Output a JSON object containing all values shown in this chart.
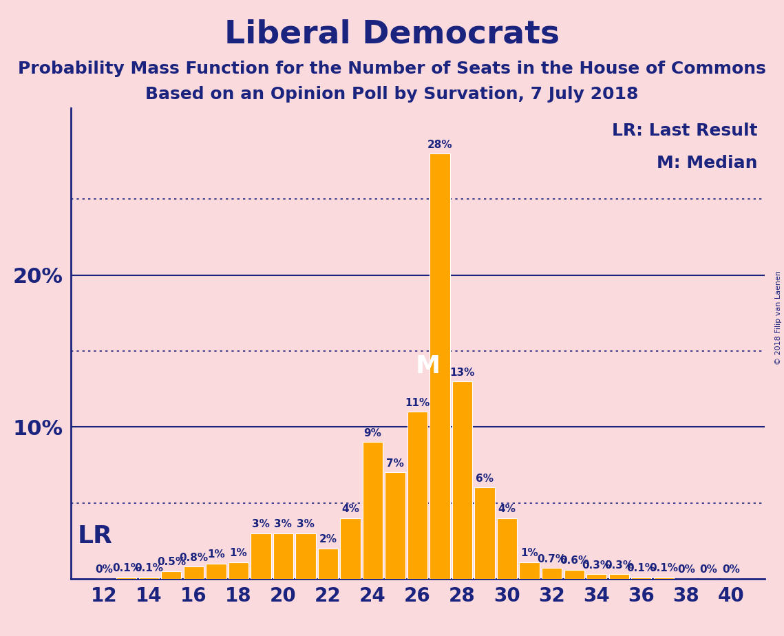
{
  "title": "Liberal Democrats",
  "subtitle1": "Probability Mass Function for the Number of Seats in the House of Commons",
  "subtitle2": "Based on an Opinion Poll by Survation, 7 July 2018",
  "copyright": "© 2018 Filip van Laenen",
  "legend_lr": "LR: Last Result",
  "legend_m": "M: Median",
  "lr_label": "LR",
  "m_label": "M",
  "seats": [
    12,
    13,
    14,
    15,
    16,
    17,
    18,
    19,
    20,
    21,
    22,
    23,
    24,
    25,
    26,
    27,
    28,
    29,
    30,
    31,
    32,
    33,
    34,
    35,
    36,
    37,
    38,
    39,
    40
  ],
  "probabilities": [
    0.0,
    0.1,
    0.1,
    0.5,
    0.8,
    1.0,
    1.1,
    3.0,
    3.0,
    3.0,
    2.0,
    4.0,
    9.0,
    7.0,
    11.0,
    28.0,
    13.0,
    6.0,
    4.0,
    1.1,
    0.7,
    0.6,
    0.3,
    0.3,
    0.1,
    0.1,
    0.0,
    0.0,
    0.0
  ],
  "bar_color": "#FFA500",
  "background_color": "#FADADD",
  "text_color": "#1a237e",
  "title_fontsize": 34,
  "subtitle_fontsize": 18,
  "bar_label_fontsize": 11,
  "tick_fontsize": 20,
  "ylabel_fontsize": 22,
  "lr_seat": 12,
  "median_seat": 27,
  "xlim": [
    10.5,
    41.5
  ],
  "ylim": [
    0,
    31
  ],
  "solid_lines": [
    10,
    20
  ],
  "dotted_lines": [
    5,
    15,
    25
  ]
}
